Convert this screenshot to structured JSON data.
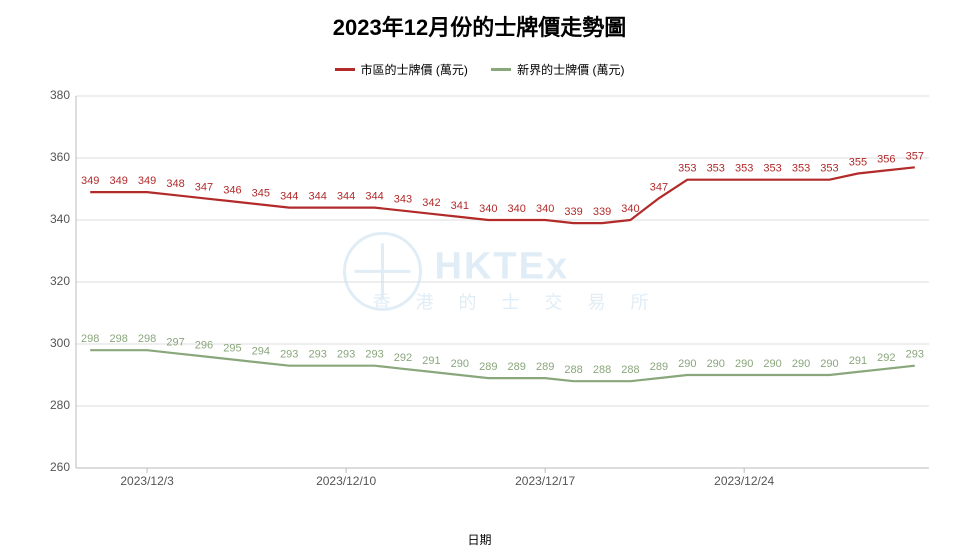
{
  "chart": {
    "type": "line",
    "title": "2023年12月份的士牌價走勢圖",
    "title_fontsize": 22,
    "xlabel": "日期",
    "label_fontsize": 12,
    "background_color": "#ffffff",
    "grid_color": "#dddddd",
    "axis_line_color": "#bbbbbb",
    "ylim": [
      260,
      380
    ],
    "ytick_step": 20,
    "yticks": [
      260,
      280,
      300,
      320,
      340,
      360,
      380
    ],
    "x_categories": [
      "2023/12/1",
      "2023/12/2",
      "2023/12/3",
      "2023/12/4",
      "2023/12/5",
      "2023/12/6",
      "2023/12/7",
      "2023/12/8",
      "2023/12/9",
      "2023/12/10",
      "2023/12/11",
      "2023/12/12",
      "2023/12/13",
      "2023/12/14",
      "2023/12/15",
      "2023/12/16",
      "2023/12/17",
      "2023/12/18",
      "2023/12/19",
      "2023/12/20",
      "2023/12/21",
      "2023/12/22",
      "2023/12/23",
      "2023/12/24",
      "2023/12/25",
      "2023/12/26",
      "2023/12/27",
      "2023/12/28",
      "2023/12/29",
      "2023/12/30"
    ],
    "xtick_indices": [
      2,
      9,
      16,
      23
    ],
    "xtick_labels": [
      "2023/12/3",
      "2023/12/10",
      "2023/12/17",
      "2023/12/24"
    ],
    "series": [
      {
        "name": "市區的士牌價 (萬元)",
        "color": "#b22a2a",
        "line_width": 2.2,
        "data": [
          349,
          349,
          349,
          348,
          347,
          346,
          345,
          344,
          344,
          344,
          344,
          343,
          342,
          341,
          340,
          340,
          340,
          339,
          339,
          340,
          347,
          353,
          353,
          353,
          353,
          353,
          353,
          355,
          356,
          357
        ]
      },
      {
        "name": "新界的士牌價 (萬元)",
        "color": "#8aa77c",
        "line_width": 2.2,
        "data": [
          298,
          298,
          298,
          297,
          296,
          295,
          294,
          293,
          293,
          293,
          293,
          292,
          291,
          290,
          289,
          289,
          289,
          288,
          288,
          288,
          289,
          290,
          290,
          290,
          290,
          290,
          290,
          291,
          292,
          293
        ]
      }
    ],
    "watermark": {
      "main": "HKTEx",
      "sub": "香 港 的 士 交 易 所",
      "color": "#c8e0f0"
    }
  }
}
